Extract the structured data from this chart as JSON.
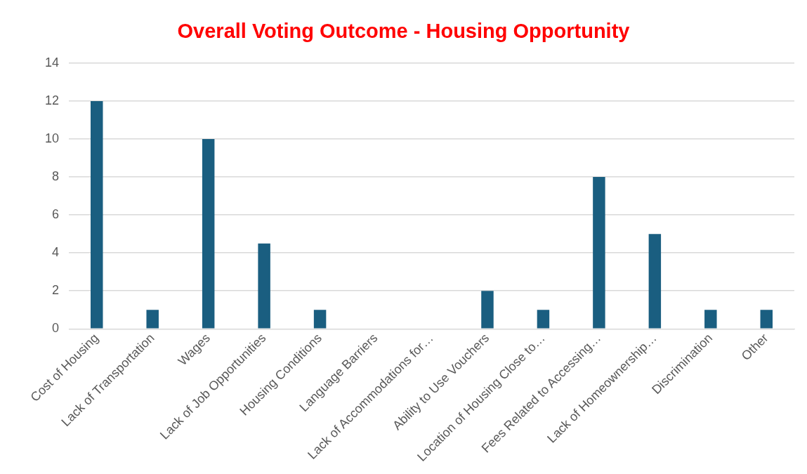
{
  "chart_data": {
    "type": "bar",
    "title": "Overall Voting Outcome - Housing Opportunity",
    "categories": [
      "Cost of Housing",
      "Lack of Transportation",
      "Wages",
      "Lack of Job Opportunities",
      "Housing Conditions",
      "Language Barriers",
      "Lack of Accommodations for…",
      "Ability to Use Vouchers",
      "Location of Housing Close to…",
      "Fees Related to Accessing…",
      "Lack of Homeownership…",
      "Discrimination",
      "Other"
    ],
    "values": [
      12,
      1,
      10,
      4.5,
      1,
      0,
      0,
      2,
      1,
      8,
      5,
      1,
      1
    ],
    "color": "#1a5e80",
    "ylim": [
      0,
      14
    ],
    "yticks": [
      0,
      2,
      4,
      6,
      8,
      10,
      12,
      14
    ],
    "grid": "y"
  }
}
